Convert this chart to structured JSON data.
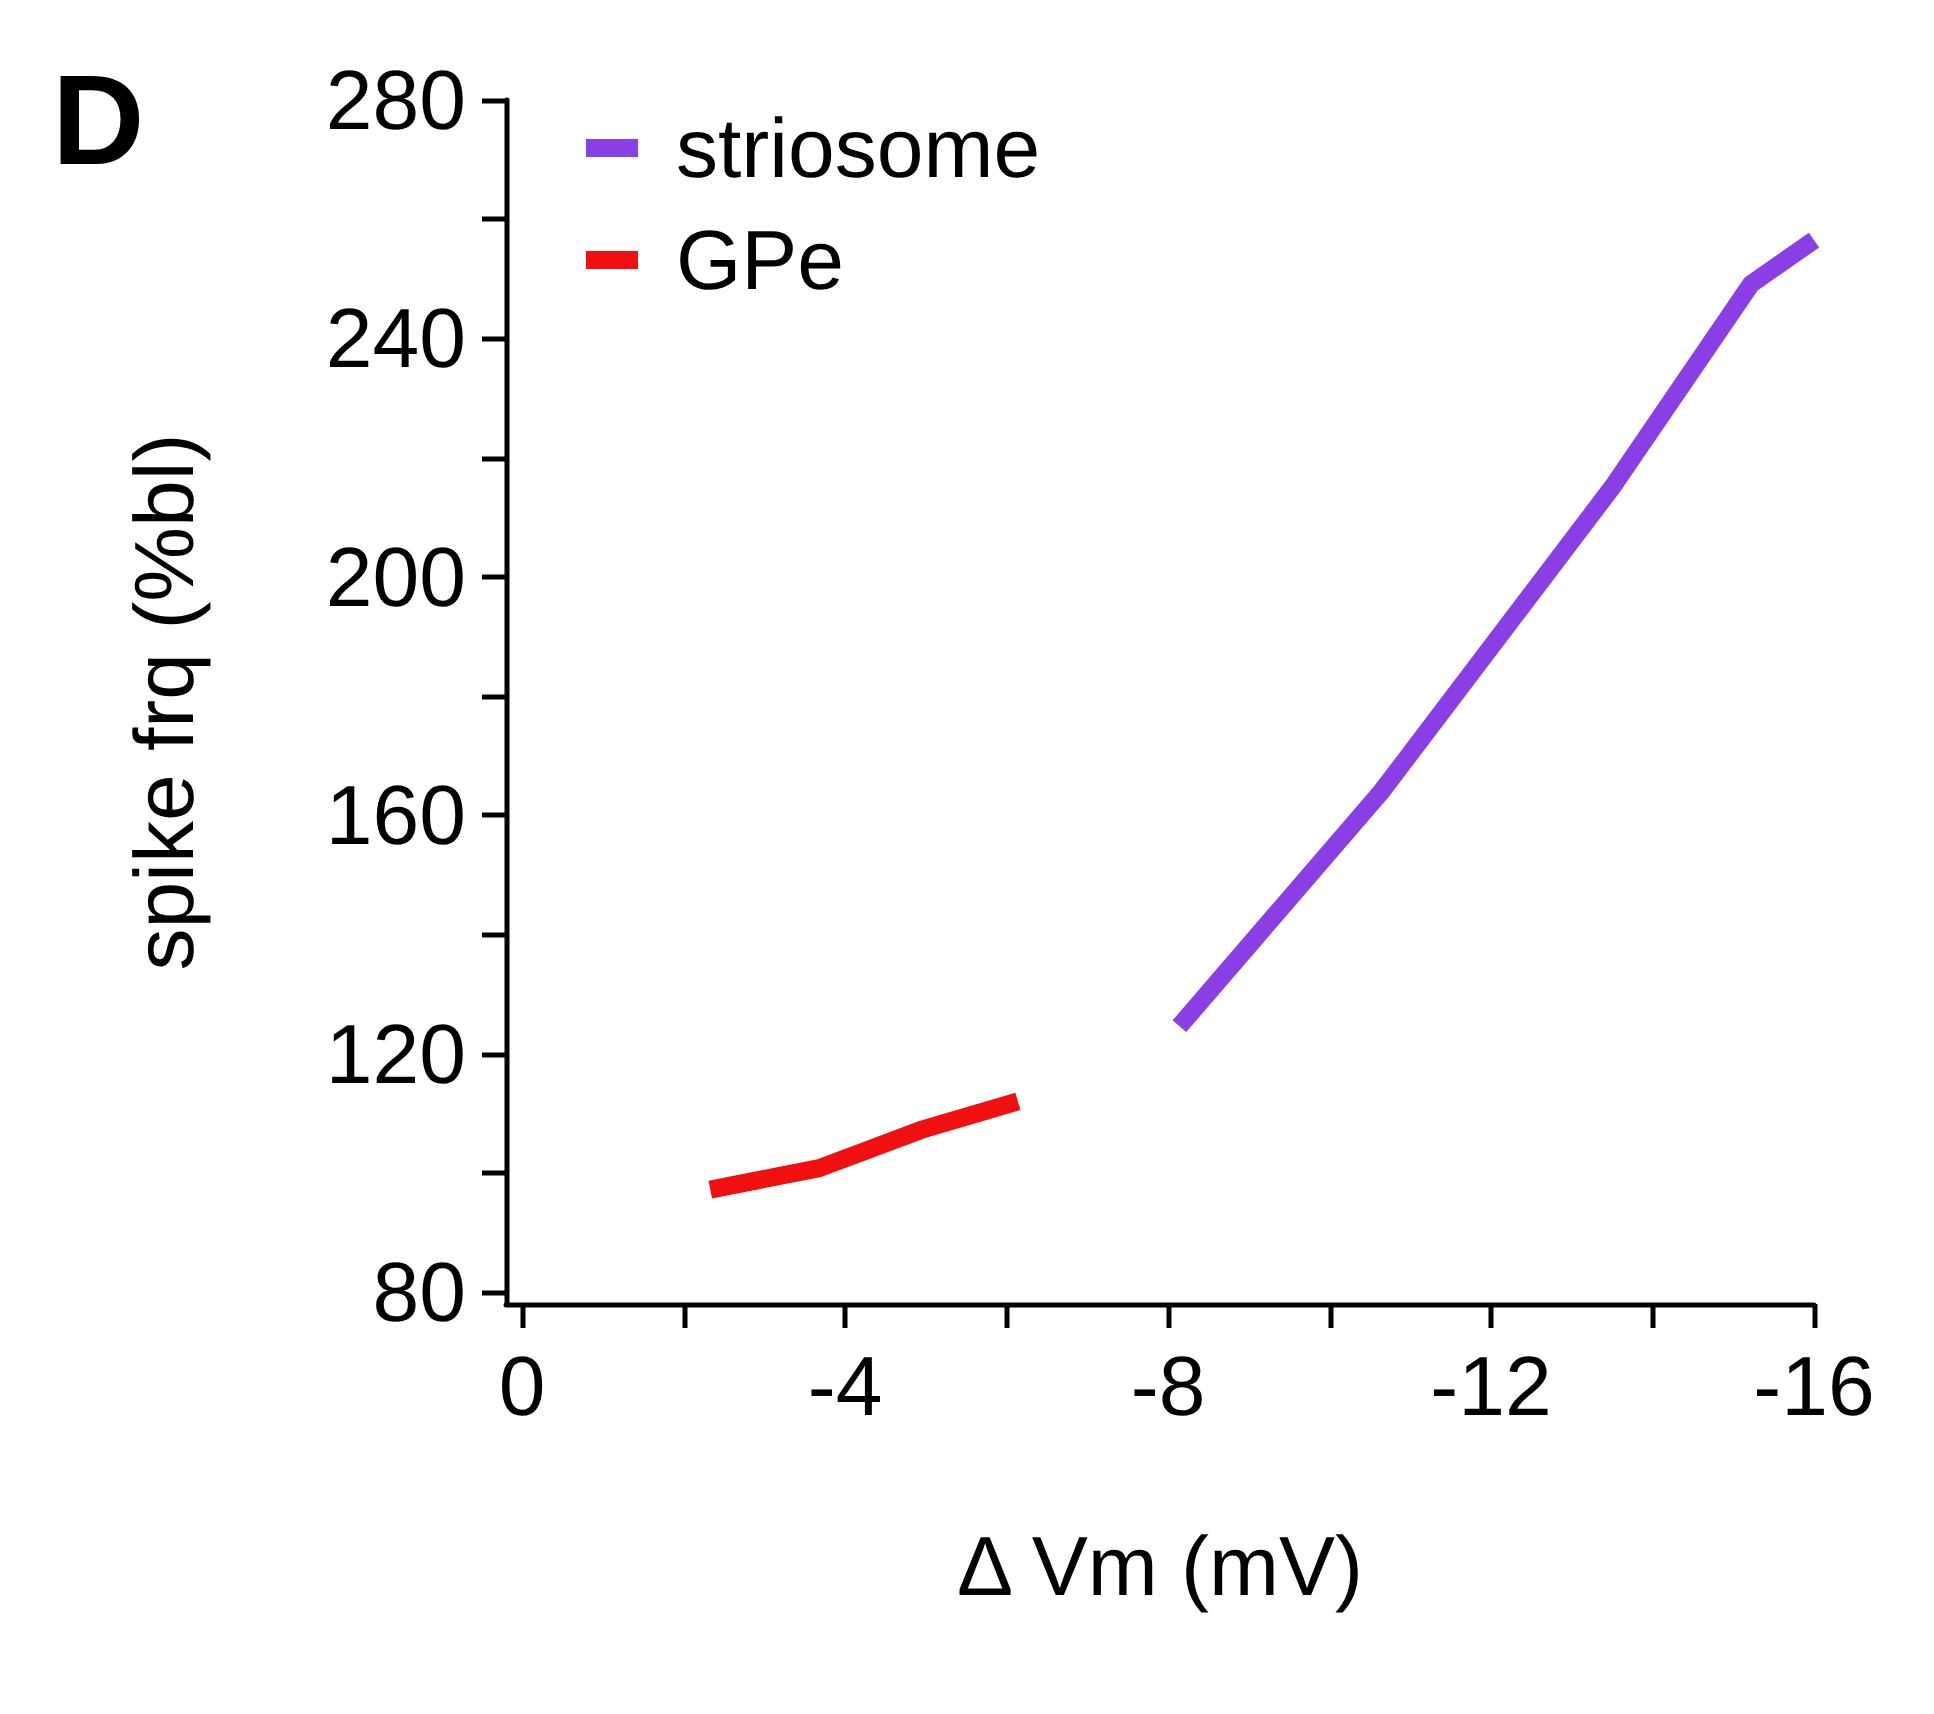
{
  "chart_data": {
    "type": "line",
    "annotations": [
      "D"
    ],
    "xlabel": "Δ Vm (mV)",
    "ylabel": "spike frq (%bl)",
    "series": [
      {
        "name": "striosome",
        "color": "#8a3ee6",
        "x": [
          -8.14,
          -10.65,
          -13.51,
          -15.22,
          -16.0
        ],
        "values": [
          124.6,
          164.1,
          215.2,
          249.1,
          256.5
        ]
      },
      {
        "name": "GPe",
        "color": "#f01010",
        "x": [
          -2.33,
          -3.68,
          -4.94,
          -6.14
        ],
        "values": [
          97.2,
          100.8,
          107.2,
          112.0
        ]
      }
    ],
    "xlim": [
      0.2,
      -16
    ],
    "xticks": [
      0,
      {
        "value": -2,
        "label": null
      },
      -4,
      {
        "value": -6,
        "label": null
      },
      -8,
      {
        "value": -10,
        "label": null
      },
      -12,
      {
        "value": -14,
        "label": null
      },
      -16
    ],
    "ylim": [
      78,
      280
    ],
    "yticks": [
      80,
      {
        "value": 100,
        "label": null
      },
      120,
      {
        "value": 140,
        "label": null
      },
      160,
      {
        "value": 180,
        "label": null
      },
      200,
      {
        "value": 220,
        "label": null
      },
      240,
      {
        "value": 260,
        "label": null
      },
      280
    ],
    "grid": false,
    "legend": "top left",
    "marker": "none",
    "line_style": "solid"
  }
}
